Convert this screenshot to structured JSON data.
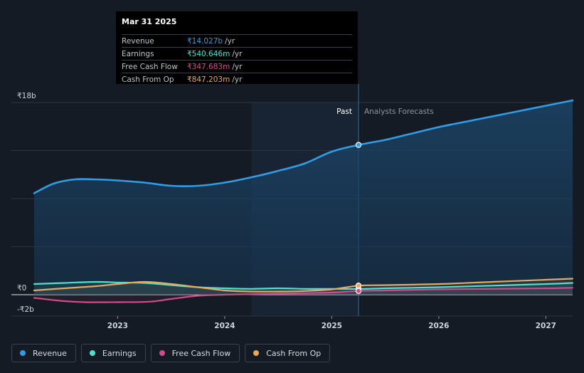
{
  "tooltip": {
    "date": "Mar 31 2025",
    "rows": [
      {
        "label": "Revenue",
        "value": "₹14.027b",
        "unit": "/yr",
        "color": "#2f9ee6"
      },
      {
        "label": "Earnings",
        "value": "₹540.646m",
        "unit": "/yr",
        "color": "#4fe0cf"
      },
      {
        "label": "Free Cash Flow",
        "value": "₹347.683m",
        "unit": "/yr",
        "color": "#d04b8c"
      },
      {
        "label": "Cash From Op",
        "value": "₹847.203m",
        "unit": "/yr",
        "color": "#e6a95e"
      }
    ]
  },
  "legend": [
    {
      "label": "Revenue",
      "color": "#2f9ee6"
    },
    {
      "label": "Earnings",
      "color": "#4fe0cf"
    },
    {
      "label": "Free Cash Flow",
      "color": "#d04b8c"
    },
    {
      "label": "Cash From Op",
      "color": "#e6a95e"
    }
  ],
  "chart_data": {
    "type": "line",
    "y_tick_labels": [
      "₹18b",
      "₹0",
      "-₹2b"
    ],
    "x_tick_labels": [
      "2023",
      "2024",
      "2025",
      "2026",
      "2027"
    ],
    "region_labels": {
      "past": "Past",
      "forecast": "Analysts Forecasts"
    },
    "ylim": [
      -2,
      18
    ],
    "xlim": [
      2022.22,
      2027.25
    ],
    "highlight_x": 2025.25,
    "forecast_shade_start": 2024.25,
    "series": [
      {
        "name": "Revenue",
        "color": "#2f9ee6",
        "x": [
          2022.22,
          2022.4,
          2022.6,
          2022.8,
          2023.0,
          2023.25,
          2023.5,
          2023.75,
          2024.0,
          2024.25,
          2024.5,
          2024.75,
          2025.0,
          2025.25,
          2025.5,
          2025.75,
          2026.0,
          2026.25,
          2026.5,
          2026.75,
          2027.0,
          2027.25
        ],
        "values": [
          9.5,
          10.4,
          10.8,
          10.8,
          10.7,
          10.5,
          10.2,
          10.2,
          10.5,
          11.0,
          11.6,
          12.3,
          13.4,
          14.027,
          14.5,
          15.1,
          15.7,
          16.2,
          16.7,
          17.2,
          17.7,
          18.2
        ]
      },
      {
        "name": "Earnings",
        "color": "#4fe0cf",
        "x": [
          2022.22,
          2022.5,
          2022.8,
          2023.0,
          2023.25,
          2023.5,
          2023.75,
          2024.0,
          2024.25,
          2024.5,
          2024.75,
          2025.0,
          2025.25,
          2025.5,
          2025.75,
          2026.0,
          2026.5,
          2027.0,
          2027.25
        ],
        "values": [
          1.0,
          1.1,
          1.2,
          1.15,
          1.1,
          0.9,
          0.7,
          0.6,
          0.55,
          0.6,
          0.55,
          0.55,
          0.54,
          0.6,
          0.65,
          0.7,
          0.85,
          1.0,
          1.1
        ]
      },
      {
        "name": "Free Cash Flow",
        "color": "#d04b8c",
        "x": [
          2022.22,
          2022.5,
          2022.7,
          2023.0,
          2023.3,
          2023.5,
          2023.75,
          2024.0,
          2024.25,
          2024.5,
          2024.75,
          2025.0,
          2025.25,
          2025.5,
          2026.0,
          2026.5,
          2027.0,
          2027.25
        ],
        "values": [
          -0.3,
          -0.6,
          -0.7,
          -0.7,
          -0.65,
          -0.4,
          -0.1,
          0.0,
          0.05,
          0.1,
          0.15,
          0.2,
          0.35,
          0.4,
          0.5,
          0.55,
          0.6,
          0.65
        ]
      },
      {
        "name": "Cash From Op",
        "color": "#e6a95e",
        "x": [
          2022.22,
          2022.5,
          2022.8,
          2023.0,
          2023.25,
          2023.5,
          2023.75,
          2024.0,
          2024.25,
          2024.5,
          2024.75,
          2025.0,
          2025.25,
          2025.5,
          2026.0,
          2026.5,
          2027.0,
          2027.25
        ],
        "values": [
          0.4,
          0.6,
          0.8,
          1.0,
          1.2,
          1.0,
          0.7,
          0.4,
          0.3,
          0.3,
          0.35,
          0.5,
          0.85,
          0.9,
          1.0,
          1.2,
          1.4,
          1.5
        ]
      }
    ]
  }
}
